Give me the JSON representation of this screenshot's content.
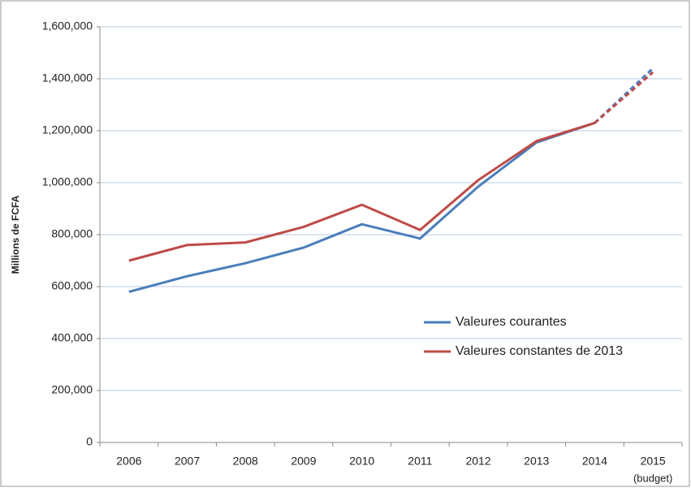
{
  "chart_data": {
    "type": "line",
    "y_label": "Millions de FCFA",
    "categories": [
      "2006",
      "2007",
      "2008",
      "2009",
      "2010",
      "2011",
      "2012",
      "2013",
      "2014",
      "2015"
    ],
    "category_notes": [
      null,
      null,
      null,
      null,
      null,
      null,
      null,
      null,
      null,
      "(budget)"
    ],
    "series": [
      {
        "name": "Valeures courantes",
        "color": "#4a7ebb",
        "values": [
          580000,
          640000,
          690000,
          750000,
          840000,
          785000,
          985000,
          1155000,
          1230000,
          1440000
        ]
      },
      {
        "name": "Valeures constantes de 2013",
        "color": "#be4b48",
        "values": [
          700000,
          760000,
          770000,
          830000,
          915000,
          818000,
          1010000,
          1160000,
          1230000,
          1425000
        ]
      }
    ],
    "dashed_last_segment": true,
    "ylim": [
      0,
      1600000
    ],
    "yticks": [
      {
        "value": 0,
        "label": "0"
      },
      {
        "value": 200000,
        "label": "200,000"
      },
      {
        "value": 400000,
        "label": "400,000"
      },
      {
        "value": 600000,
        "label": "600,000"
      },
      {
        "value": 800000,
        "label": "800,000"
      },
      {
        "value": 1000000,
        "label": "1,000,000"
      },
      {
        "value": 1200000,
        "label": "1,200,000"
      },
      {
        "value": 1400000,
        "label": "1,400,000"
      },
      {
        "value": 1600000,
        "label": "1,600,000"
      }
    ],
    "grid": true,
    "legend": "center-right"
  }
}
